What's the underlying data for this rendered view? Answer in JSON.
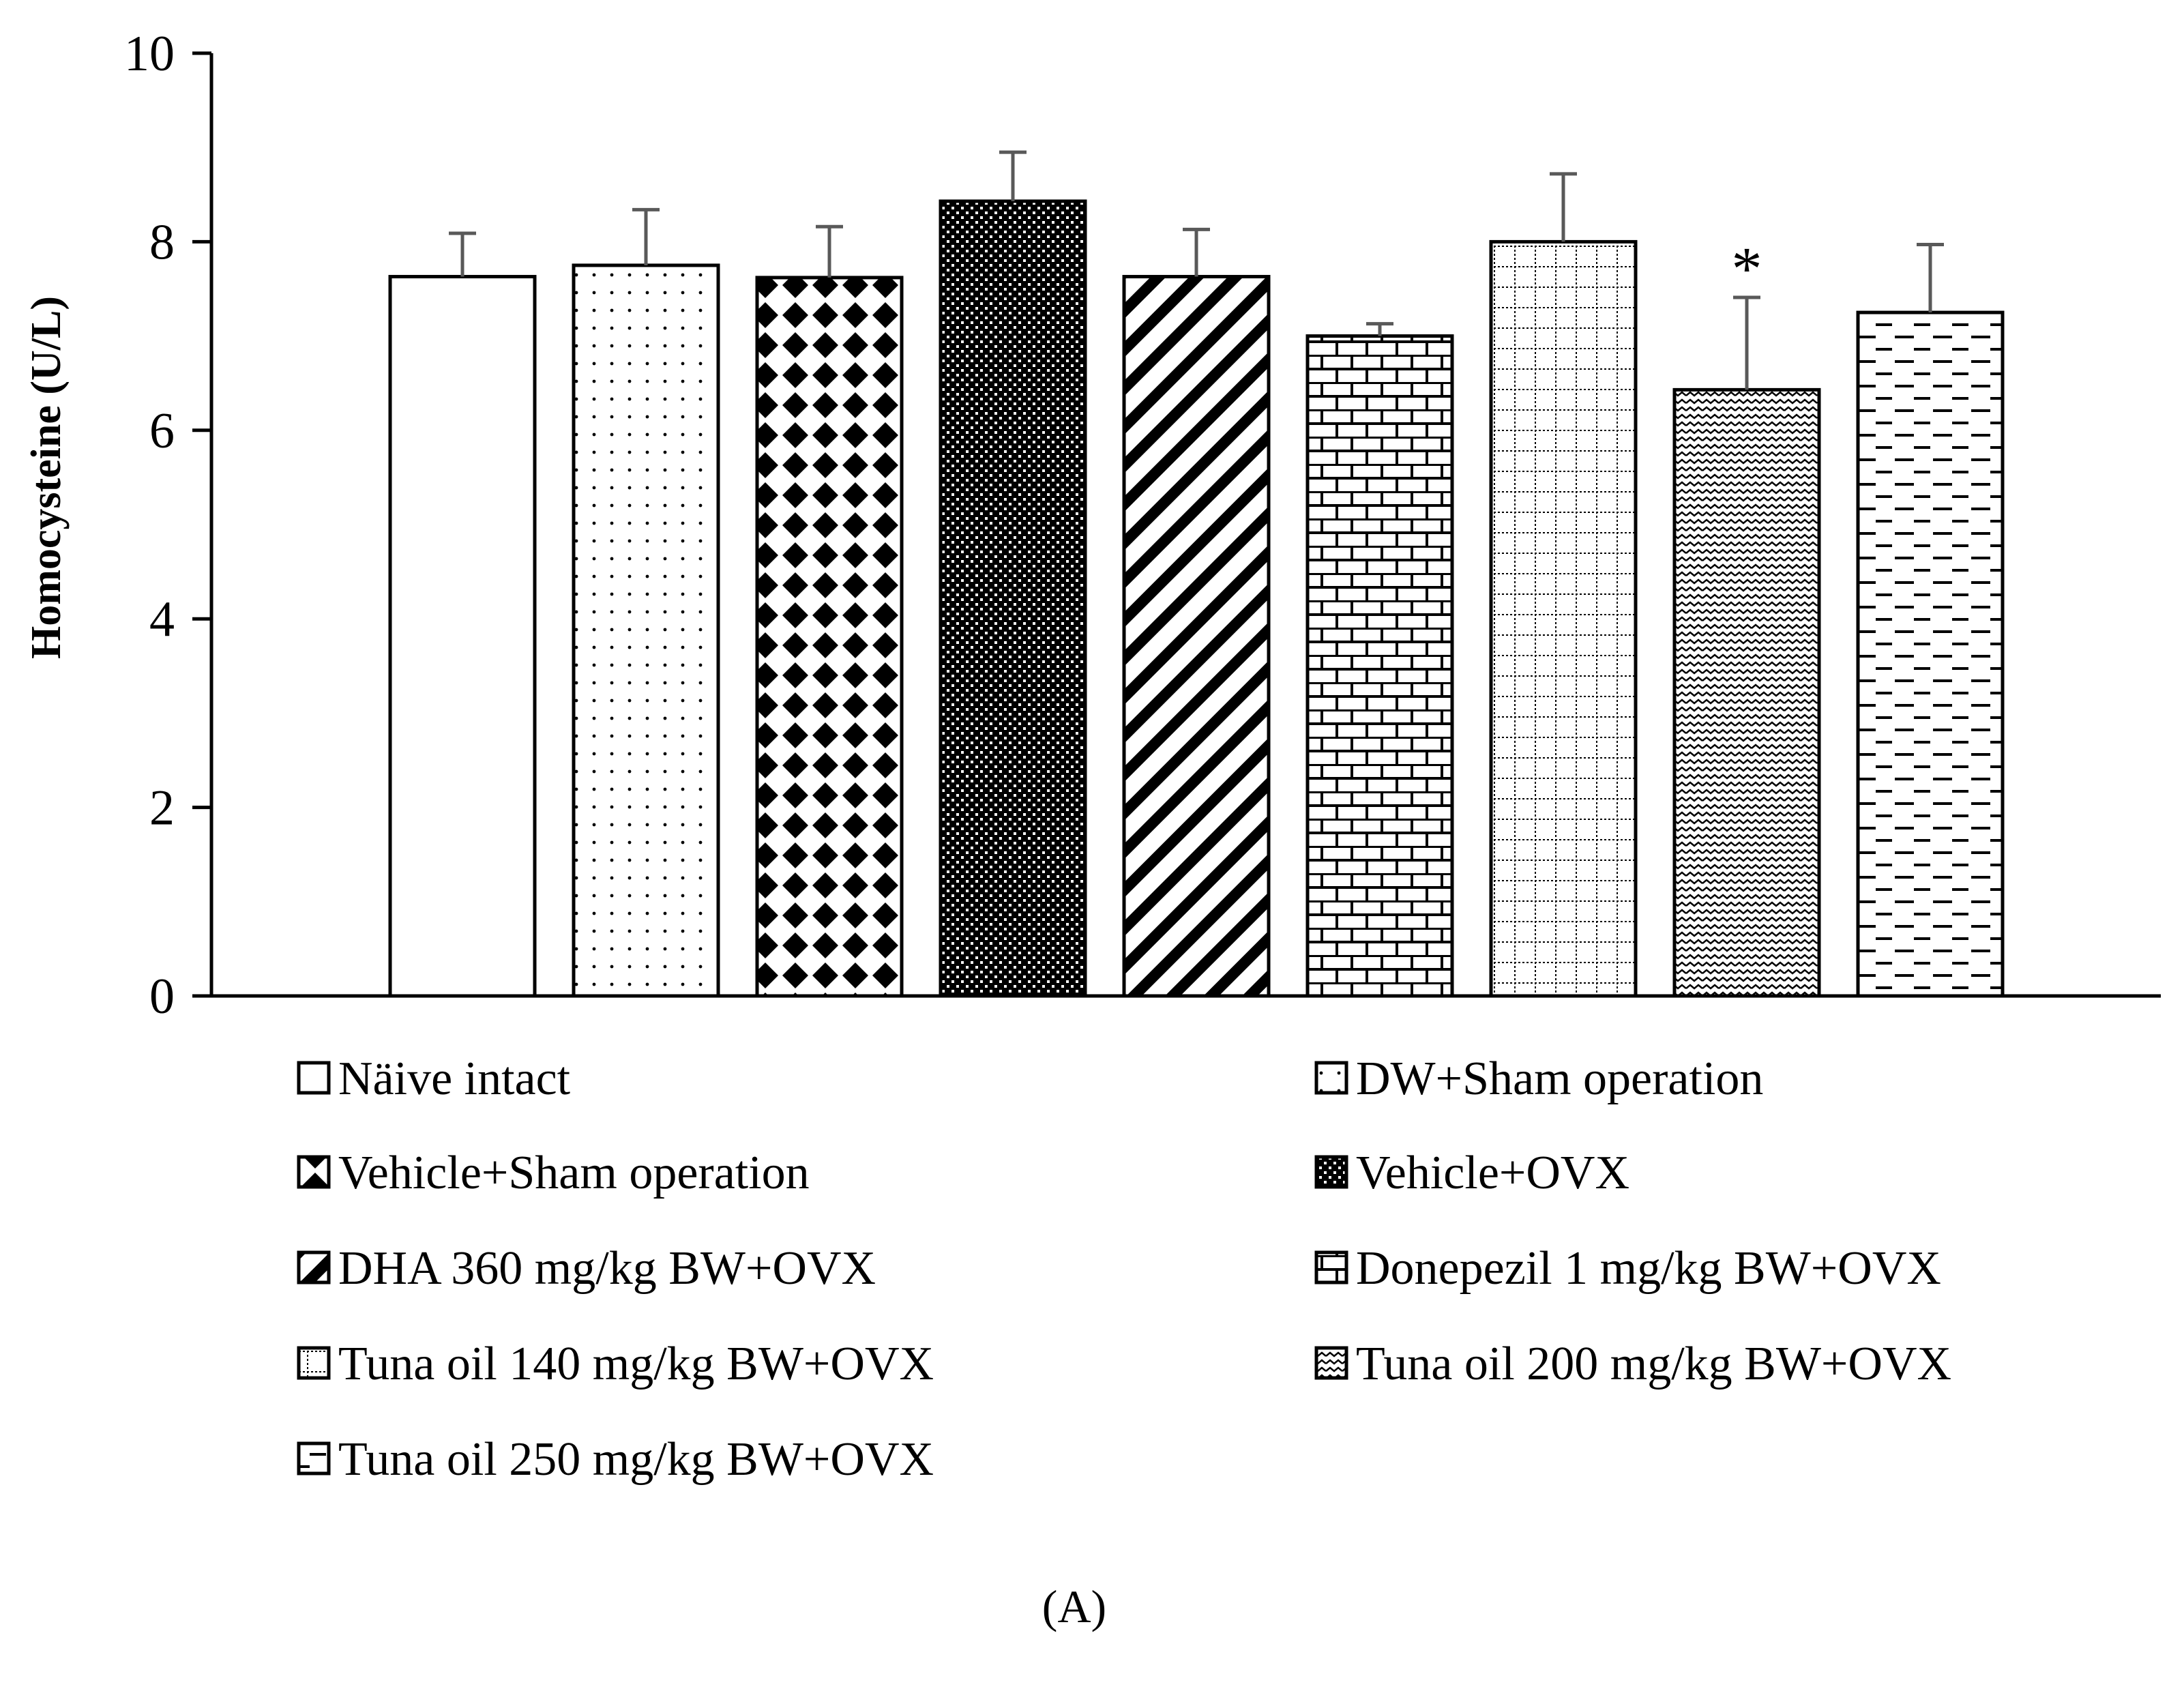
{
  "chart_data": {
    "type": "bar",
    "title": "",
    "xlabel": "",
    "ylabel": "Homocysteine (U/L)",
    "ylim": [
      0,
      10
    ],
    "yticks": [
      0,
      2,
      4,
      6,
      8,
      10
    ],
    "grid": false,
    "legend_position": "bottom",
    "categories": [
      "Näive intact",
      "DW+Sham operation",
      "Vehicle+Sham operation",
      "Vehicle+OVX",
      "DHA 360 mg/kg BW+OVX",
      "Donepezil 1 mg/kg BW+OVX",
      "Tuna oil 140 mg/kg BW+OVX",
      "Tuna oil 200 mg/kg BW+OVX",
      " Tuna oil 250 mg/kg BW+OVX"
    ],
    "values": [
      7.63,
      7.75,
      7.62,
      8.43,
      7.63,
      7.0,
      8.0,
      6.43,
      7.25
    ],
    "errors": [
      0.46,
      0.59,
      0.54,
      0.52,
      0.5,
      0.13,
      0.72,
      0.98,
      0.72
    ],
    "patterns": [
      "blank",
      "dots",
      "diamonds",
      "checker",
      "diagonal",
      "brick",
      "grid",
      "wave",
      "dashes"
    ],
    "significance": [
      "",
      "",
      "",
      "",
      "",
      "",
      "",
      "*",
      ""
    ],
    "panel_label": "(A)",
    "colors": {
      "bar_stroke": "#000000",
      "error_bar": "#595959",
      "background": "#ffffff"
    }
  }
}
